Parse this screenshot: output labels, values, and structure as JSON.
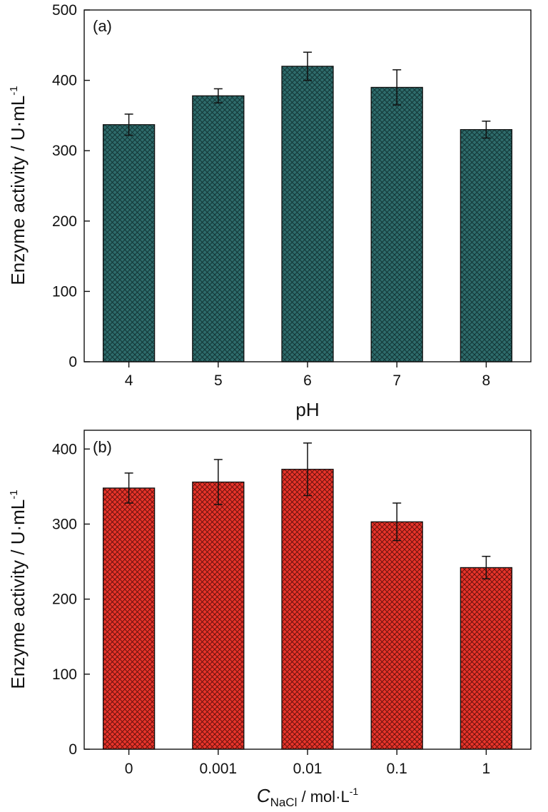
{
  "chart_data": [
    {
      "type": "bar",
      "panel_label": "(a)",
      "categories": [
        "4",
        "5",
        "6",
        "7",
        "8"
      ],
      "values": [
        337,
        378,
        420,
        390,
        330
      ],
      "errors": [
        15,
        10,
        20,
        25,
        12
      ],
      "xlabel": "pH",
      "ylabel": "Enzyme activity / U·mL",
      "ylabel_sup": "-1",
      "ylim": [
        0,
        500
      ],
      "yticks": [
        0,
        100,
        200,
        300,
        400,
        500
      ],
      "bar_color": "#2e6b6b",
      "hatch": "crosshatch",
      "grid": false,
      "legend": "none"
    },
    {
      "type": "bar",
      "panel_label": "(b)",
      "categories": [
        "0",
        "0.001",
        "0.01",
        "0.1",
        "1"
      ],
      "values": [
        348,
        356,
        373,
        303,
        242
      ],
      "errors": [
        20,
        30,
        35,
        25,
        15
      ],
      "xlabel": "C",
      "xlabel_sub": "NaCl",
      "xlabel_rest": " / mol·L",
      "xlabel_sup": "-1",
      "ylabel": "Enzyme activity / U·mL",
      "ylabel_sup": "-1",
      "ylim": [
        0,
        425
      ],
      "yticks": [
        0,
        100,
        200,
        300,
        400
      ],
      "bar_color": "#e8342a",
      "hatch": "crosshatch",
      "grid": false,
      "legend": "none"
    }
  ]
}
